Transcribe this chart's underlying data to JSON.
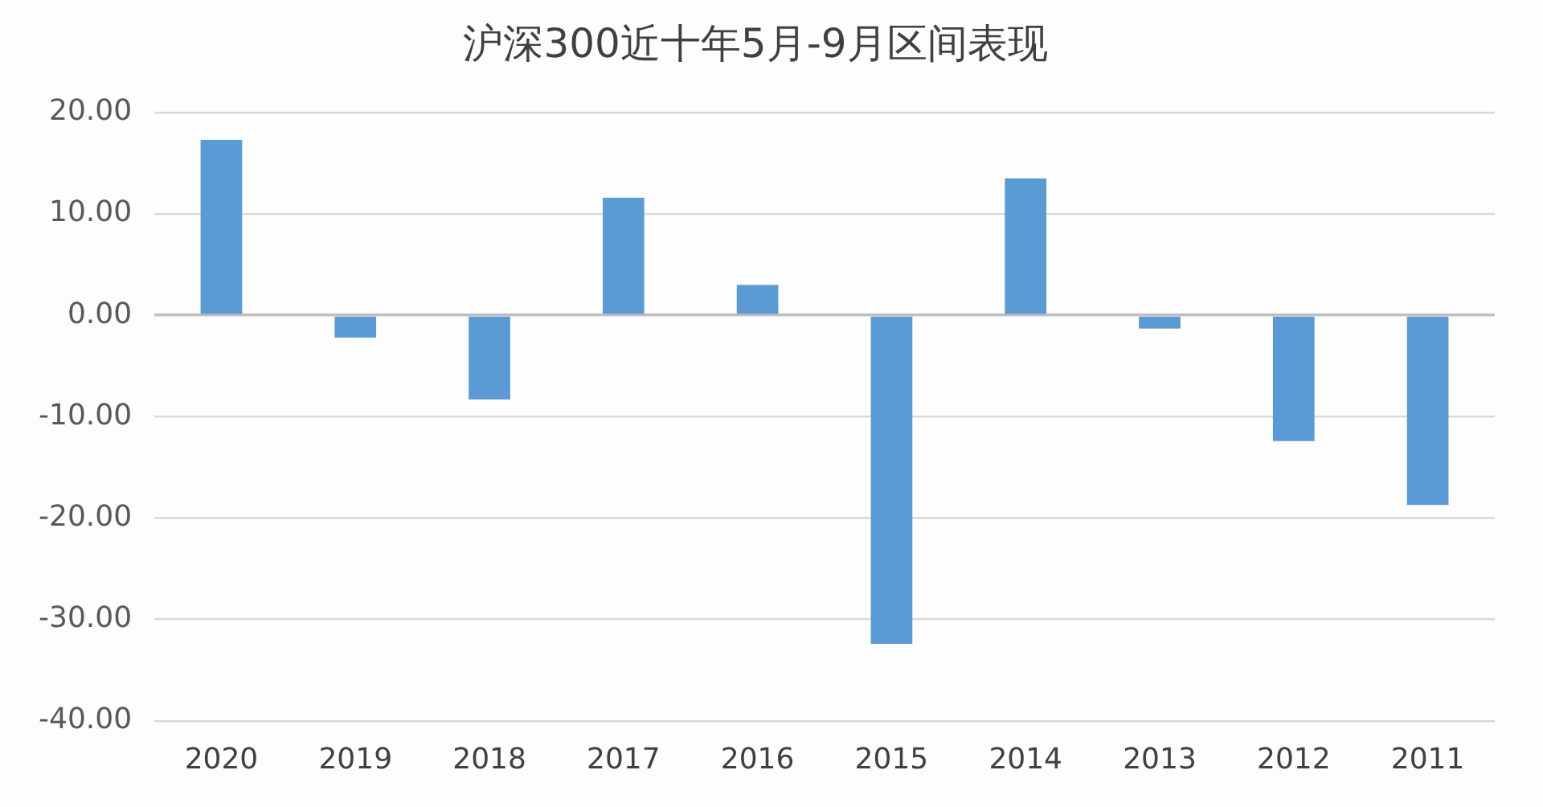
{
  "chart_data": {
    "type": "bar",
    "title": "沪深300近十年5月-9月区间表现",
    "categories": [
      "2020",
      "2019",
      "2018",
      "2017",
      "2016",
      "2015",
      "2014",
      "2013",
      "2012",
      "2011"
    ],
    "values": [
      17.3,
      -2.2,
      -8.3,
      11.6,
      3.0,
      -32.4,
      13.5,
      -1.3,
      -12.4,
      -18.7
    ],
    "color": "#5b9bd5",
    "ylim": [
      -40,
      20
    ],
    "yticks": [
      {
        "value": -40,
        "label": "-40.00"
      },
      {
        "value": -30,
        "label": "-30.00"
      },
      {
        "value": -20,
        "label": "-20.00"
      },
      {
        "value": -10,
        "label": "-10.00"
      },
      {
        "value": 0,
        "label": "0.00"
      },
      {
        "value": 10,
        "label": "10.00"
      },
      {
        "value": 20,
        "label": "20.00"
      }
    ],
    "grid": "y",
    "legend": false
  }
}
